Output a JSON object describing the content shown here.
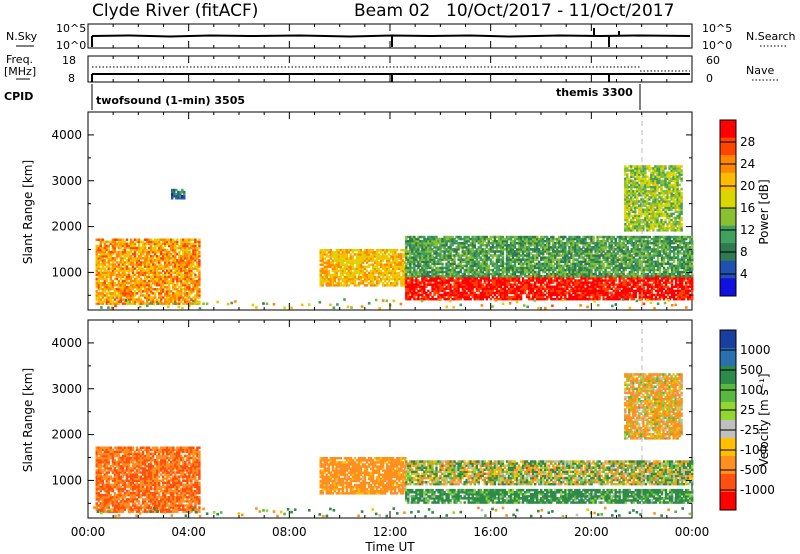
{
  "header": {
    "station": "Clyde River (fitACF)",
    "beam": "Beam 02",
    "dates": "10/Oct/2017 - 11/Oct/2017"
  },
  "panels": {
    "nsky_label": "N.Sky",
    "nsky_ticks": [
      "10^5",
      "10^0"
    ],
    "nsearch_label": "N.Search",
    "nsearch_ticks": [
      "10^5",
      "10^0"
    ],
    "freq_label_1": "Freq.",
    "freq_label_2": "[MHz]",
    "freq_ticks": [
      "18",
      "8"
    ],
    "nave_label": "Nave",
    "nave_ticks": [
      "60",
      "0"
    ],
    "cpid_label": "CPID",
    "cpid_1": "twofsound (1-min) 3505",
    "cpid_2": "themis 3300"
  },
  "axes": {
    "ylabel": "Slant Range [km]",
    "yticks": [
      "4000",
      "3000",
      "2000",
      "1000"
    ],
    "xticks": [
      "00:00",
      "04:00",
      "08:00",
      "12:00",
      "16:00",
      "20:00",
      "00:00"
    ],
    "xlabel": "Time UT"
  },
  "colorbars": {
    "power": {
      "label": "Power [dB]",
      "ticks": [
        "28",
        "24",
        "20",
        "16",
        "12",
        "8",
        "4"
      ],
      "colors": [
        "#ff0000",
        "#ff4400",
        "#ff8800",
        "#ffbb00",
        "#d8d800",
        "#88c030",
        "#40a060",
        "#2f7a50",
        "#2050b0",
        "#1010e0"
      ]
    },
    "velocity": {
      "label": "Velocity [m s⁻¹]",
      "ticks": [
        "1000",
        "500",
        "100",
        "25",
        "-25",
        "-100",
        "-500",
        "-1000"
      ],
      "colors": [
        "#1a3fa0",
        "#2a70b0",
        "#2e8a4a",
        "#58b840",
        "#90d830",
        "#c0c0c0",
        "#ffc000",
        "#ff9020",
        "#ff5010",
        "#ff0000"
      ]
    }
  },
  "chart_data": {
    "type": "heatmap",
    "title": "Clyde River (fitACF)",
    "xlabel": "Time UT",
    "ylabel": "Slant Range [km]",
    "xlim": [
      "10/Oct/2017 00:00",
      "11/Oct/2017 00:00"
    ],
    "ylim": [
      180,
      4500
    ],
    "panels": [
      {
        "name": "Power [dB]",
        "clim": [
          0,
          30
        ],
        "regions": [
          {
            "t_start_h": 0.3,
            "t_end_h": 4.4,
            "range_km": [
              300,
              1700
            ],
            "value_dB": 22
          },
          {
            "t_start_h": 3.3,
            "t_end_h": 3.8,
            "range_km": [
              2600,
              2800
            ],
            "value_dB": 6
          },
          {
            "t_start_h": 9.2,
            "t_end_h": 12.6,
            "range_km": [
              700,
              1500
            ],
            "value_dB": 20
          },
          {
            "t_start_h": 12.6,
            "t_end_h": 24.0,
            "range_km": [
              400,
              900
            ],
            "value_dB": 30
          },
          {
            "t_start_h": 12.6,
            "t_end_h": 24.0,
            "range_km": [
              900,
              1800
            ],
            "value_dB": 10
          },
          {
            "t_start_h": 21.3,
            "t_end_h": 23.6,
            "range_km": [
              1900,
              3300
            ],
            "value_dB": 14
          }
        ]
      },
      {
        "name": "Velocity [m s-1]",
        "clim": [
          -1000,
          1000
        ],
        "regions": [
          {
            "t_start_h": 0.3,
            "t_end_h": 4.4,
            "range_km": [
              300,
              1700
            ],
            "value_ms": -300
          },
          {
            "t_start_h": 9.2,
            "t_end_h": 12.6,
            "range_km": [
              700,
              1500
            ],
            "value_ms": -150
          },
          {
            "t_start_h": 12.6,
            "t_end_h": 24.0,
            "range_km": [
              500,
              800
            ],
            "value_ms": 120
          },
          {
            "t_start_h": 12.6,
            "t_end_h": 24.0,
            "range_km": [
              900,
              1400
            ],
            "value_ms": 0
          },
          {
            "t_start_h": 21.3,
            "t_end_h": 23.6,
            "range_km": [
              1900,
              3300
            ],
            "value_ms": -80
          }
        ]
      }
    ],
    "grid": false,
    "legend": "colorbars right"
  }
}
